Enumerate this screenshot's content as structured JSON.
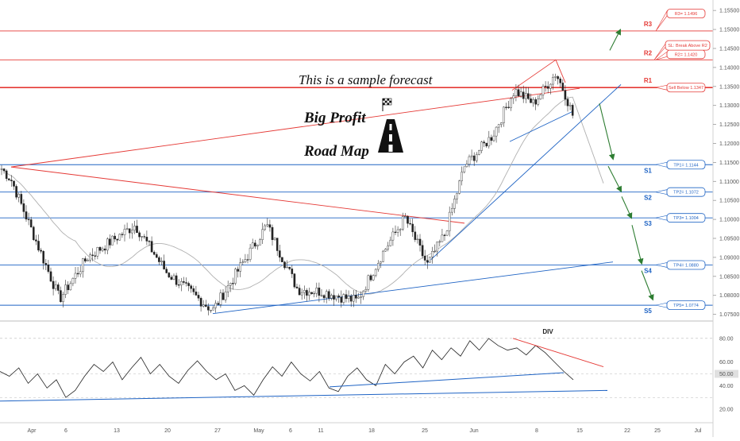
{
  "brand": {
    "line1": "Big Profit",
    "line2": "Road Map"
  },
  "forecast_title": "This is a sample forecast",
  "rsi_annotation": "DIV",
  "colors": {
    "bull": "#26a69a",
    "bear": "#222222",
    "resistance": "#e53935",
    "support": "#1e63c4",
    "arrow": "#2e7d32",
    "ma": "#b0b0b0"
  },
  "levels": [
    {
      "tag": "R3",
      "type": "resistance",
      "price": 1.1496,
      "callout": "R3= 1.1496"
    },
    {
      "tag": "R2",
      "type": "resistance",
      "price": 1.142,
      "callout": "R2= 1.1420"
    },
    {
      "tag": "R1",
      "type": "resistance",
      "price": 1.1347,
      "callout": "Sell Below 1.1347"
    },
    {
      "tag": "S1",
      "type": "support",
      "price": 1.1144,
      "callout": "TP1= 1.1144"
    },
    {
      "tag": "S2",
      "type": "support",
      "price": 1.1072,
      "callout": "TP2= 1.1072"
    },
    {
      "tag": "S3",
      "type": "support",
      "price": 1.1004,
      "callout": "TP3= 1.1004"
    },
    {
      "tag": "S4",
      "type": "support",
      "price": 1.088,
      "callout": "TP4= 1.0880"
    },
    {
      "tag": "S5",
      "type": "support",
      "price": 1.0774,
      "callout": "TP5= 1.0774"
    }
  ],
  "sl_callout": "SL: Break Above R2",
  "chart_data": [
    {
      "type": "candlestick",
      "title": "",
      "xlabel": "",
      "ylabel": "",
      "ylim": [
        1.0745,
        1.1565
      ],
      "y_ticks": [
        "1.07500",
        "1.08000",
        "1.08500",
        "1.09000",
        "1.09500",
        "1.10000",
        "1.10500",
        "1.11000",
        "1.11500",
        "1.12000",
        "1.12500",
        "1.13000",
        "1.13500",
        "1.14000",
        "1.14500",
        "1.15000",
        "1.15500"
      ],
      "x_ticks": [
        "Apr",
        "6",
        "13",
        "20",
        "27",
        "May",
        "6",
        "11",
        "18",
        "25",
        "Jun",
        "8",
        "15",
        "22",
        "25",
        "Jul"
      ],
      "grid": false,
      "ohlc_summary": [
        {
          "date": "Mar 31",
          "price": 1.1138
        },
        {
          "date": "Apr 1",
          "price": 1.1105
        },
        {
          "date": "Apr 6",
          "price": 1.079
        },
        {
          "date": "Apr 13",
          "price": 1.09
        },
        {
          "date": "Apr 16",
          "price": 1.0985
        },
        {
          "date": "Apr 20",
          "price": 1.086
        },
        {
          "date": "Apr 27",
          "price": 1.076
        },
        {
          "date": "May 1",
          "price": 1.0985
        },
        {
          "date": "May 6",
          "price": 1.0815
        },
        {
          "date": "May 11",
          "price": 1.081
        },
        {
          "date": "May 14",
          "price": 1.0785
        },
        {
          "date": "May 18",
          "price": 1.0905
        },
        {
          "date": "May 21",
          "price": 1.1005
        },
        {
          "date": "May 25",
          "price": 1.088
        },
        {
          "date": "May 28",
          "price": 1.096
        },
        {
          "date": "Jun 1",
          "price": 1.114
        },
        {
          "date": "Jun 3",
          "price": 1.122
        },
        {
          "date": "Jun 7",
          "price": 1.134
        },
        {
          "date": "Jun 10",
          "price": 1.1305
        },
        {
          "date": "Jun 12",
          "price": 1.1385
        },
        {
          "date": "Jun 14",
          "price": 1.133
        },
        {
          "date": "Jun 15",
          "price": 1.127
        }
      ]
    },
    {
      "type": "line",
      "title": "",
      "ylim": [
        10,
        92
      ],
      "y_ticks": [
        "80.00",
        "60.00",
        "50.00",
        "40.00",
        "20.00"
      ],
      "series": [
        {
          "name": "",
          "values": [
            52,
            48,
            55,
            42,
            50,
            38,
            45,
            30,
            36,
            48,
            58,
            52,
            60,
            45,
            55,
            64,
            50,
            58,
            48,
            42,
            53,
            61,
            52,
            45,
            50,
            36,
            40,
            32,
            45,
            56,
            48,
            60,
            50,
            44,
            52,
            38,
            35,
            48,
            55,
            45,
            40,
            58,
            50,
            60,
            65,
            55,
            70,
            62,
            72,
            65,
            78,
            70,
            80,
            74,
            70,
            72,
            66,
            74,
            68,
            60,
            52,
            45
          ]
        }
      ],
      "markers": [
        {
          "label": "50.00",
          "value": 50
        }
      ]
    }
  ]
}
